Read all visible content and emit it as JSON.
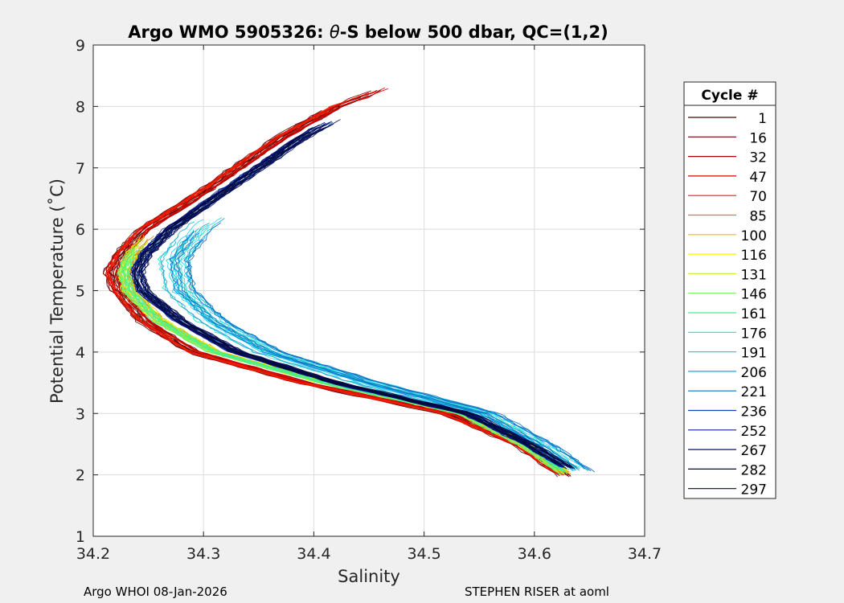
{
  "chart_data": {
    "type": "line",
    "title_prefix": "Argo WMO 5905326: ",
    "title_theta": "θ",
    "title_suffix": "-S below 500 dbar,  QC=(1,2)",
    "xlabel": "Salinity",
    "ylabel": "Potential Temperature (˚C)",
    "xlim": [
      34.2,
      34.7
    ],
    "ylim": [
      1,
      9
    ],
    "xticks": [
      "34.2",
      "34.3",
      "34.4",
      "34.5",
      "34.6",
      "34.7"
    ],
    "yticks": [
      "1",
      "2",
      "3",
      "4",
      "5",
      "6",
      "7",
      "8",
      "9"
    ],
    "grid": true,
    "legend": {
      "title": "Cycle #",
      "position": "right-outside",
      "entries": [
        {
          "label": "1",
          "color": "#4b0000"
        },
        {
          "label": "16",
          "color": "#7a0000"
        },
        {
          "label": "32",
          "color": "#a80000"
        },
        {
          "label": "47",
          "color": "#d40000"
        },
        {
          "label": "70",
          "color": "#f01e00"
        },
        {
          "label": "85",
          "color": "#d88400"
        },
        {
          "label": "100",
          "color": "#f2c000"
        },
        {
          "label": "116",
          "color": "#f4f400"
        },
        {
          "label": "131",
          "color": "#c8f040"
        },
        {
          "label": "146",
          "color": "#80f060"
        },
        {
          "label": "161",
          "color": "#40f090"
        },
        {
          "label": "176",
          "color": "#20e0c0"
        },
        {
          "label": "191",
          "color": "#20d0f0"
        },
        {
          "label": "206",
          "color": "#1aa8d8"
        },
        {
          "label": "221",
          "color": "#0a70c8"
        },
        {
          "label": "236",
          "color": "#0a48b0"
        },
        {
          "label": "252",
          "color": "#08249a"
        },
        {
          "label": "267",
          "color": "#041078"
        },
        {
          "label": "282",
          "color": "#020a50"
        },
        {
          "label": "297",
          "color": "#020a3a"
        }
      ]
    },
    "series_shape": {
      "description": "Theta-S profiles for each cycle, approximate envelope by cycle group",
      "groups": [
        {
          "cycle_range": "1-70",
          "min_salinity_offset": 0.0,
          "points_theta": [
            1.97,
            2.5,
            3.0,
            3.5,
            4.0,
            4.5,
            5.0,
            5.3,
            5.6,
            6.0,
            6.5,
            7.0,
            7.5,
            8.0,
            8.3
          ],
          "points_salinity": [
            34.628,
            34.585,
            34.52,
            34.39,
            34.29,
            34.245,
            34.222,
            34.215,
            34.225,
            34.245,
            34.29,
            34.33,
            34.37,
            34.42,
            34.465
          ]
        },
        {
          "cycle_range": "85-161",
          "points_theta": [
            2.0,
            2.5,
            3.0,
            3.5,
            4.0,
            4.5,
            5.0,
            5.3,
            5.6,
            5.9
          ],
          "points_salinity": [
            34.63,
            34.59,
            34.535,
            34.41,
            34.31,
            34.26,
            34.232,
            34.228,
            34.235,
            34.25
          ]
        },
        {
          "cycle_range": "176-221",
          "points_theta": [
            2.05,
            2.5,
            3.0,
            3.5,
            4.0,
            4.5,
            5.0,
            5.5,
            6.0,
            6.2
          ],
          "points_salinity": [
            34.632,
            34.595,
            34.545,
            34.44,
            34.35,
            34.3,
            34.27,
            34.265,
            34.285,
            34.3
          ]
        },
        {
          "cycle_range": "236-297",
          "points_theta": [
            2.1,
            2.5,
            3.0,
            3.5,
            4.0,
            4.5,
            5.0,
            5.3,
            5.6,
            6.0,
            6.5,
            7.0,
            7.5,
            7.8
          ],
          "points_salinity": [
            34.632,
            34.595,
            34.54,
            34.42,
            34.33,
            34.28,
            34.245,
            34.24,
            34.248,
            34.27,
            34.31,
            34.35,
            34.39,
            34.42
          ]
        }
      ]
    }
  },
  "footer": {
    "left": "Argo WHOI 08-Jan-2026",
    "right": "STEPHEN RISER at aoml"
  }
}
